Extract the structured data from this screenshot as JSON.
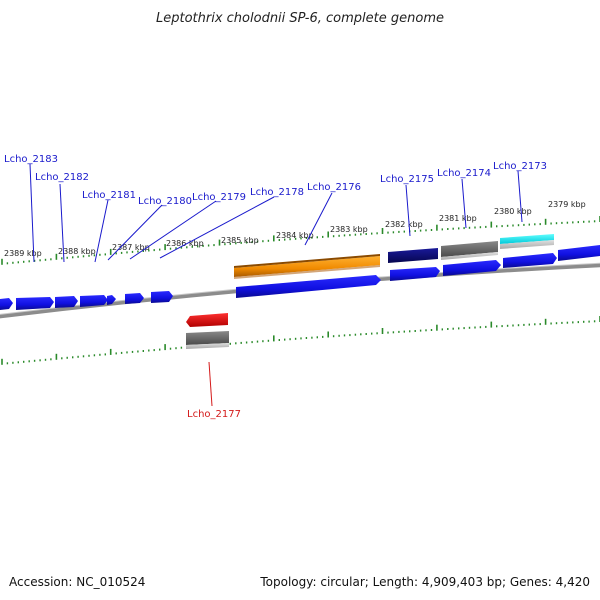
{
  "title": "Leptothrix cholodnii SP-6, complete genome",
  "footer": {
    "accession": "Accession: NC_010524",
    "topology": "Topology: circular; Length: 4,909,403 bp; Genes: 4,420"
  },
  "colors": {
    "label_forward": "#1a1acc",
    "label_reverse": "#d41a1a",
    "tick": "#2a8a2a",
    "backbone": "#8c8c8c"
  },
  "ticks": [
    "2389 kbp",
    "2388 kbp",
    "2387 kbp",
    "2386 kbp",
    "2385 kbp",
    "2384 kbp",
    "2383 kbp",
    "2382 kbp",
    "2381 kbp",
    "2380 kbp",
    "2379 kbp"
  ],
  "genes": [
    {
      "name": "Lcho_2183",
      "strand": "forward"
    },
    {
      "name": "Lcho_2182",
      "strand": "forward"
    },
    {
      "name": "Lcho_2181",
      "strand": "forward"
    },
    {
      "name": "Lcho_2180",
      "strand": "forward"
    },
    {
      "name": "Lcho_2179",
      "strand": "forward"
    },
    {
      "name": "Lcho_2178",
      "strand": "forward"
    },
    {
      "name": "Lcho_2176",
      "strand": "forward"
    },
    {
      "name": "Lcho_2175",
      "strand": "forward"
    },
    {
      "name": "Lcho_2174",
      "strand": "forward"
    },
    {
      "name": "Lcho_2173",
      "strand": "forward"
    },
    {
      "name": "Lcho_2177",
      "strand": "reverse"
    }
  ]
}
